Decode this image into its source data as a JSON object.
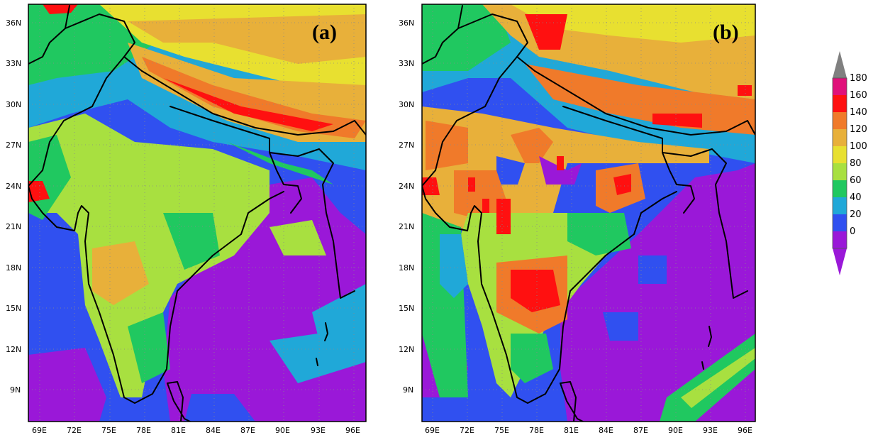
{
  "panels": [
    {
      "label": "(a)"
    },
    {
      "label": "(b)"
    }
  ],
  "map": {
    "lat_ticks": [
      "36N",
      "33N",
      "30N",
      "27N",
      "24N",
      "21N",
      "18N",
      "15N",
      "12N",
      "9N"
    ],
    "lon_ticks": [
      "69E",
      "72E",
      "75E",
      "78E",
      "81E",
      "84E",
      "87E",
      "90E",
      "93E",
      "96E"
    ],
    "lat_values": [
      36,
      33,
      30,
      27,
      24,
      21,
      18,
      15,
      12,
      9
    ],
    "lon_values": [
      69,
      72,
      75,
      78,
      81,
      84,
      87,
      90,
      93,
      96
    ],
    "lat_range": [
      7,
      37
    ],
    "lon_range": [
      68,
      97
    ]
  },
  "colorbar": {
    "labels": [
      "180",
      "160",
      "140",
      "120",
      "100",
      "80",
      "60",
      "40",
      "20",
      "0"
    ],
    "colors": [
      "#e0107a",
      "#ff1010",
      "#f07a2a",
      "#e8b03a",
      "#e8e030",
      "#a8e040",
      "#20c860",
      "#20a8d8",
      "#3050f0",
      "#9a18d8"
    ],
    "overflow_color": "#808080",
    "underflow_color": "#9a18d8"
  }
}
